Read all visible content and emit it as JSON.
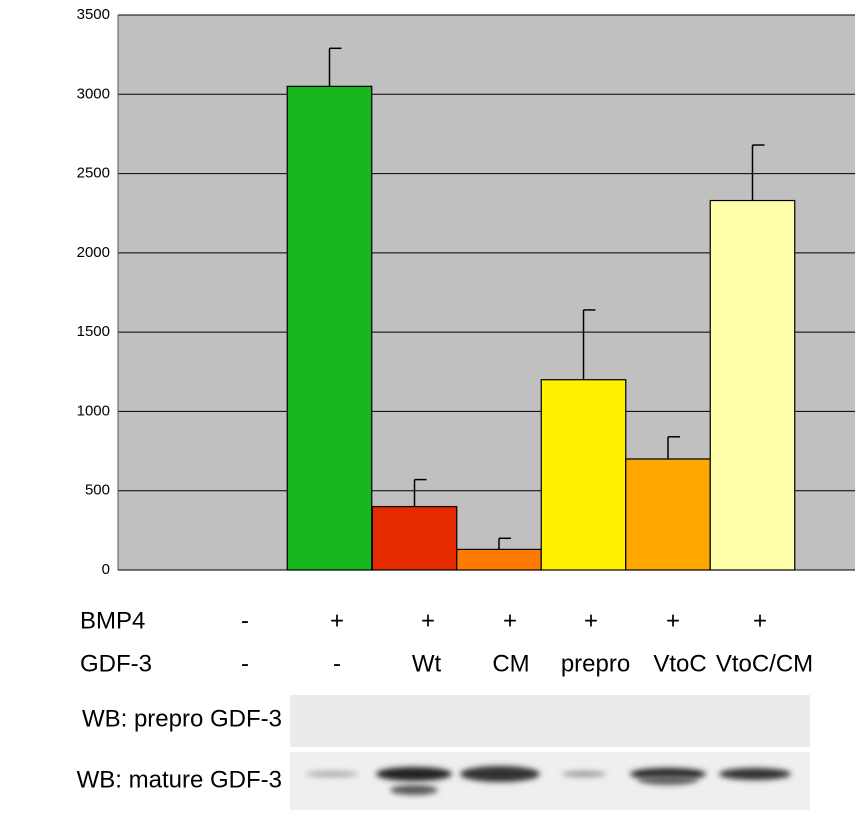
{
  "chart_data": {
    "type": "bar",
    "values": [
      0,
      3050,
      400,
      130,
      1200,
      700,
      2330
    ],
    "errors": [
      0,
      240,
      170,
      70,
      440,
      140,
      350
    ],
    "colors": [
      "#17b81d",
      "#17b81d",
      "#e52a00",
      "#ff7a00",
      "#fff100",
      "#ffa600",
      "#ffffaa"
    ],
    "ylim": [
      0,
      3500
    ],
    "yticks": [
      0,
      500,
      1000,
      1500,
      2000,
      2500,
      3000,
      3500
    ],
    "grid": true
  },
  "table": {
    "rows": [
      {
        "label": "BMP4",
        "cells": [
          "-",
          "+",
          "+",
          "+",
          "+",
          "+",
          "+"
        ]
      },
      {
        "label": "GDF-3",
        "cells": [
          "-",
          "-",
          "Wt",
          "CM",
          "prepro",
          "VtoC",
          "VtoC/CM"
        ]
      }
    ]
  },
  "blots": [
    "WB: prepro GDF-3",
    "WB: mature GDF-3"
  ]
}
